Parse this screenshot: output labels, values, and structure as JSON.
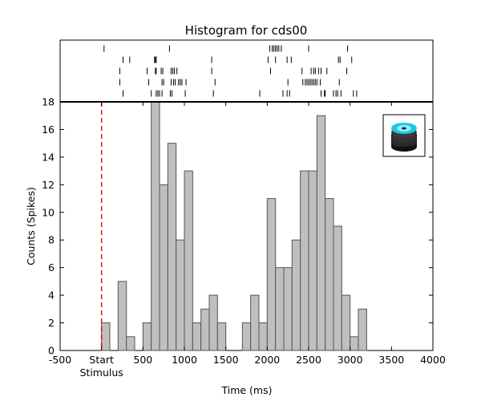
{
  "chart_data": {
    "type": "bar",
    "title": "Histogram for cds00",
    "xlabel": "Time (ms)",
    "ylabel": "Counts (Spikes)",
    "xlim": [
      -500,
      4000
    ],
    "ylim": [
      0,
      18
    ],
    "x_ticks": [
      -500,
      0,
      500,
      1000,
      1500,
      2000,
      2500,
      3000,
      3500,
      4000
    ],
    "x_tick_labels": [
      "-500",
      "Start",
      "500",
      "1000",
      "1500",
      "2000",
      "2500",
      "3000",
      "3500",
      "4000"
    ],
    "x_sublabel": {
      "x": 0,
      "text": "Stimulus"
    },
    "y_ticks": [
      0,
      2,
      4,
      6,
      8,
      10,
      12,
      14,
      16,
      18
    ],
    "y_tick_labels": [
      "0",
      "2",
      "4",
      "6",
      "8",
      "10",
      "12",
      "14",
      "16",
      "18"
    ],
    "bin_width": 100,
    "bins": [
      {
        "start": 0,
        "count": 2
      },
      {
        "start": 100,
        "count": 0
      },
      {
        "start": 200,
        "count": 5
      },
      {
        "start": 300,
        "count": 1
      },
      {
        "start": 400,
        "count": 0
      },
      {
        "start": 500,
        "count": 2
      },
      {
        "start": 600,
        "count": 18
      },
      {
        "start": 700,
        "count": 12
      },
      {
        "start": 800,
        "count": 15
      },
      {
        "start": 900,
        "count": 8
      },
      {
        "start": 1000,
        "count": 13
      },
      {
        "start": 1100,
        "count": 2
      },
      {
        "start": 1200,
        "count": 3
      },
      {
        "start": 1300,
        "count": 4
      },
      {
        "start": 1400,
        "count": 2
      },
      {
        "start": 1500,
        "count": 0
      },
      {
        "start": 1600,
        "count": 0
      },
      {
        "start": 1700,
        "count": 2
      },
      {
        "start": 1800,
        "count": 4
      },
      {
        "start": 1900,
        "count": 2
      },
      {
        "start": 2000,
        "count": 11
      },
      {
        "start": 2100,
        "count": 6
      },
      {
        "start": 2200,
        "count": 6
      },
      {
        "start": 2300,
        "count": 8
      },
      {
        "start": 2400,
        "count": 13
      },
      {
        "start": 2500,
        "count": 13
      },
      {
        "start": 2600,
        "count": 17
      },
      {
        "start": 2700,
        "count": 11
      },
      {
        "start": 2800,
        "count": 9
      },
      {
        "start": 2900,
        "count": 4
      },
      {
        "start": 3000,
        "count": 1
      },
      {
        "start": 3100,
        "count": 3
      }
    ],
    "bar_fill": "#bfbfbf",
    "bar_edge": "#555555",
    "stimulus_marker": {
      "x": 0,
      "color": "#ff0000",
      "style": "dashed"
    },
    "raster_trials": [
      [
        30,
        820,
        2030,
        2060,
        2080,
        2100,
        2120,
        2140,
        2170,
        2500,
        2970
      ],
      [
        260,
        340,
        640,
        650,
        660,
        1330,
        2010,
        2100,
        2240,
        2290,
        2860,
        2880,
        3020
      ],
      [
        220,
        550,
        650,
        660,
        720,
        740,
        840,
        860,
        880,
        910,
        1330,
        2040,
        2420,
        2530,
        2560,
        2580,
        2620,
        2650,
        2720,
        2960
      ],
      [
        220,
        570,
        730,
        750,
        840,
        870,
        890,
        930,
        950,
        970,
        1020,
        1370,
        2250,
        2430,
        2460,
        2480,
        2500,
        2520,
        2540,
        2560,
        2580,
        2600,
        2640,
        2870
      ],
      [
        260,
        600,
        660,
        680,
        700,
        730,
        830,
        850,
        1010,
        1350,
        1910,
        2190,
        2240,
        2270,
        2650,
        2690,
        2700,
        2800,
        2830,
        2850,
        2890,
        3040,
        3080
      ]
    ],
    "icon": "disc-stack-icon"
  }
}
